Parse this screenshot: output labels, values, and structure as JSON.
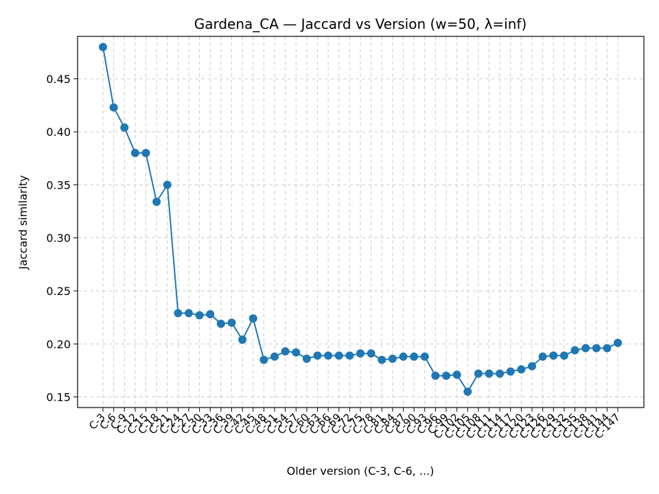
{
  "chart_data": {
    "type": "line",
    "title": "Gardena_CA — Jaccard vs Version (w=50, λ=inf)",
    "xlabel": "Older version (C-3, C-6, ...)",
    "ylabel": "Jaccard similarity",
    "ylim": [
      0.14,
      0.49
    ],
    "yticks": [
      "0.15",
      "0.20",
      "0.25",
      "0.30",
      "0.35",
      "0.40",
      "0.45"
    ],
    "grid": true,
    "categories": [
      "C-3",
      "C-6",
      "C-9",
      "C-12",
      "C-15",
      "C-18",
      "C-21",
      "C-24",
      "C-27",
      "C-30",
      "C-33",
      "C-36",
      "C-39",
      "C-42",
      "C-45",
      "C-48",
      "C-51",
      "C-54",
      "C-57",
      "C-60",
      "C-63",
      "C-66",
      "C-69",
      "C-72",
      "C-75",
      "C-78",
      "C-81",
      "C-84",
      "C-87",
      "C-90",
      "C-93",
      "C-96",
      "C-99",
      "C-102",
      "C-105",
      "C-108",
      "C-111",
      "C-114",
      "C-117",
      "C-120",
      "C-123",
      "C-126",
      "C-129",
      "C-132",
      "C-135",
      "C-138",
      "C-141",
      "C-144",
      "C-147"
    ],
    "series": [
      {
        "color": "#1f77b4",
        "values": [
          0.48,
          0.423,
          0.404,
          0.38,
          0.38,
          0.334,
          0.35,
          0.229,
          0.229,
          0.227,
          0.228,
          0.219,
          0.22,
          0.204,
          0.224,
          0.185,
          0.188,
          0.193,
          0.192,
          0.186,
          0.189,
          0.189,
          0.189,
          0.189,
          0.191,
          0.191,
          0.185,
          0.186,
          0.188,
          0.188,
          0.188,
          0.17,
          0.17,
          0.171,
          0.155,
          0.172,
          0.172,
          0.172,
          0.174,
          0.176,
          0.179,
          0.188,
          0.189,
          0.189,
          0.194,
          0.196,
          0.196,
          0.196,
          0.201
        ]
      }
    ]
  }
}
